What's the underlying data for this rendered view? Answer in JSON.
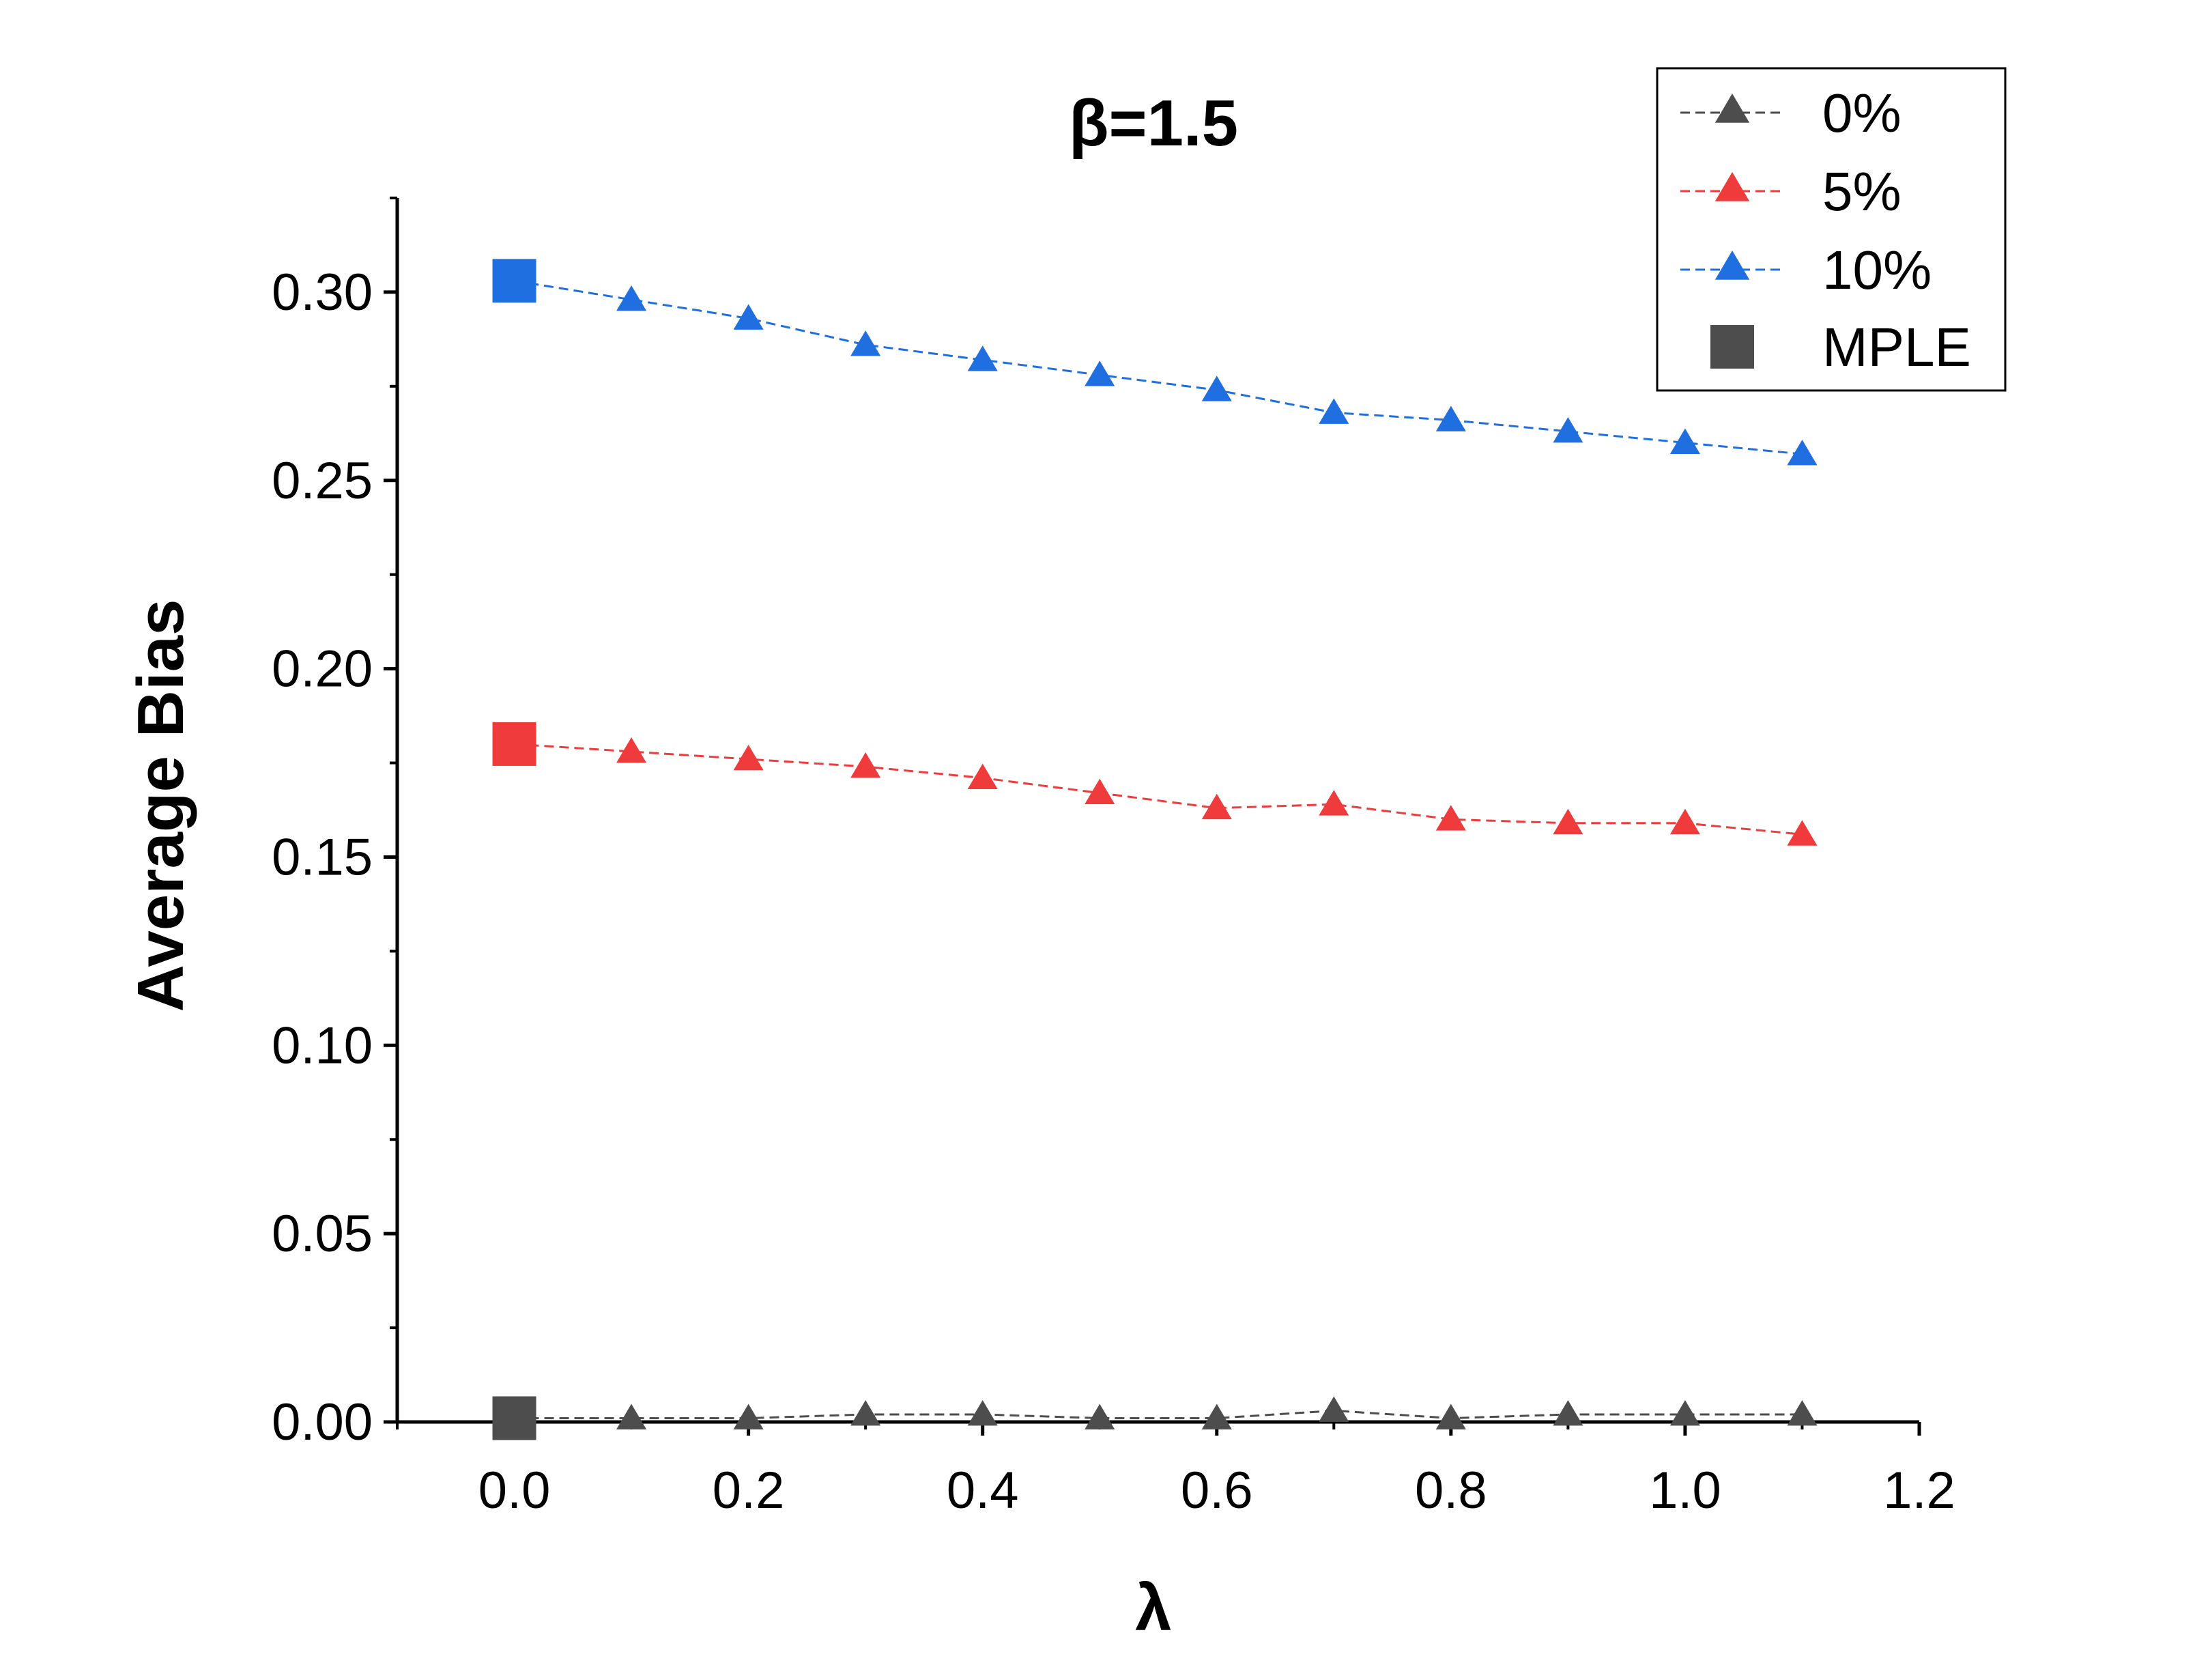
{
  "chart_data": {
    "type": "line",
    "title": "β=1.5",
    "xlabel": "λ",
    "ylabel": "Average Bias",
    "xlim": [
      -0.1,
      1.2
    ],
    "ylim": [
      0.0,
      0.325
    ],
    "x_ticks": [
      "0.0",
      "0.2",
      "0.4",
      "0.6",
      "0.8",
      "1.0",
      "1.2"
    ],
    "y_ticks": [
      "0.00",
      "0.05",
      "0.10",
      "0.15",
      "0.20",
      "0.25",
      "0.30"
    ],
    "legend_position": "top-right",
    "x": [
      0.1,
      0.2,
      0.3,
      0.4,
      0.5,
      0.6,
      0.7,
      0.8,
      0.9,
      1.0,
      1.1
    ],
    "series": [
      {
        "name": "0%",
        "color": "#4d4d4d",
        "start_value": 0.001,
        "values": [
          0.001,
          0.001,
          0.002,
          0.002,
          0.001,
          0.001,
          0.003,
          0.001,
          0.002,
          0.002,
          0.002
        ]
      },
      {
        "name": "5%",
        "color": "#ef3b3b",
        "start_value": 0.18,
        "values": [
          0.178,
          0.176,
          0.174,
          0.171,
          0.167,
          0.163,
          0.164,
          0.16,
          0.159,
          0.159,
          0.156
        ]
      },
      {
        "name": "10%",
        "color": "#1f6fe0",
        "start_value": 0.303,
        "values": [
          0.298,
          0.293,
          0.286,
          0.282,
          0.278,
          0.274,
          0.268,
          0.266,
          0.263,
          0.26,
          0.257
        ]
      }
    ],
    "mple": {
      "name": "MPLE",
      "color": "#4d4d4d",
      "x": 0.0,
      "values": [
        0.001,
        0.18,
        0.303
      ],
      "colors": [
        "#4d4d4d",
        "#ef3b3b",
        "#1f6fe0"
      ]
    }
  }
}
